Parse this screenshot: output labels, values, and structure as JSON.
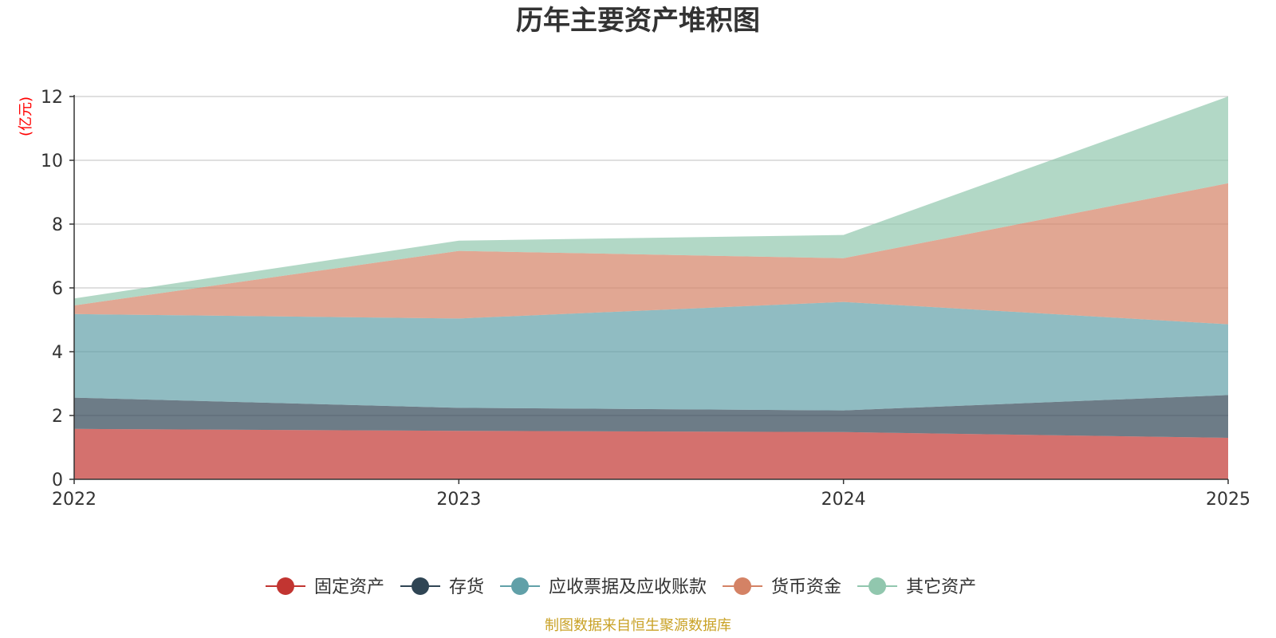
{
  "chart_data": {
    "type": "area",
    "stacked": true,
    "title": "历年主要资产堆积图",
    "ylabel": "(亿元)",
    "xlabel": "",
    "categories": [
      "2022",
      "2023",
      "2024",
      "2025"
    ],
    "ylim": [
      0,
      12
    ],
    "yticks": [
      "0",
      "2",
      "4",
      "6",
      "8",
      "10",
      "12"
    ],
    "grid": true,
    "legend_position": "bottom",
    "series": [
      {
        "name": "固定资产",
        "color": "#c23531",
        "values": [
          1.58,
          1.52,
          1.48,
          1.3
        ]
      },
      {
        "name": "存货",
        "color": "#2f4554",
        "values": [
          0.98,
          0.72,
          0.68,
          1.34
        ]
      },
      {
        "name": "应收票据及应收账款",
        "color": "#61a0a8",
        "values": [
          2.62,
          2.8,
          3.4,
          2.22
        ]
      },
      {
        "name": "货币资金",
        "color": "#d48265",
        "values": [
          0.27,
          2.12,
          1.37,
          4.42
        ]
      },
      {
        "name": "其它资产",
        "color": "#91c7ae",
        "values": [
          0.22,
          0.32,
          0.73,
          2.72
        ]
      }
    ],
    "source_note": "制图数据来自恒生聚源数据库",
    "source_color": "#c9a227",
    "unit_color": "#ff0000"
  }
}
